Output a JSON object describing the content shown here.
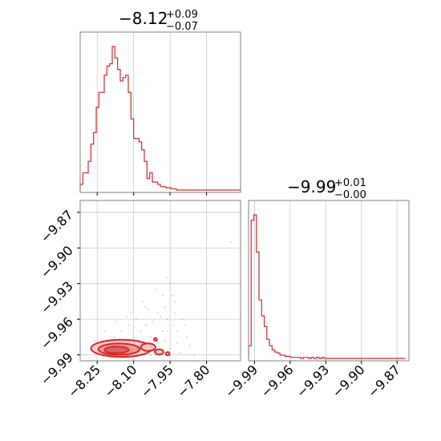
{
  "style": {
    "series_color": "#d62728",
    "fill_light": "#f4c7c7",
    "fill_mid": "#e9898a"
  },
  "chart_data": [
    {
      "type": "histogram",
      "panel": "top-left",
      "param_index": 1,
      "title": {
        "value": "−8.12",
        "upper": "+0.09",
        "lower": "−0.07"
      },
      "xlim": [
        -8.32,
        -7.66
      ],
      "bin_width": 0.011,
      "bins_start": -8.32,
      "counts": [
        5,
        15,
        15,
        25,
        40,
        50,
        72,
        85,
        85,
        100,
        108,
        110,
        125,
        115,
        105,
        95,
        98,
        100,
        85,
        62,
        45,
        45,
        42,
        35,
        25,
        10,
        15,
        7,
        7,
        5,
        3,
        3,
        2,
        2,
        1,
        1,
        0,
        0,
        0,
        0,
        0,
        0,
        0,
        0,
        0,
        0,
        0,
        0,
        0,
        0,
        0,
        0,
        0,
        0,
        0,
        0,
        0,
        0,
        0,
        0
      ],
      "x_ticks": [
        -8.25,
        -8.1,
        -7.95,
        -7.8
      ],
      "y_ticks": []
    },
    {
      "type": "histogram",
      "panel": "bottom-right",
      "param_index": 2,
      "title": {
        "value": "−9.99",
        "upper": "+0.01",
        "lower": "−0.00"
      },
      "xlim": [
        -9.995,
        -9.86
      ],
      "bin_width": 0.0022,
      "bins_start": -9.995,
      "counts": [
        12,
        130,
        135,
        100,
        55,
        40,
        30,
        18,
        12,
        8,
        6,
        5,
        3,
        3,
        2,
        2,
        1,
        1,
        1,
        1,
        0,
        1,
        1,
        0,
        1,
        0,
        1,
        0,
        1,
        0,
        0,
        0,
        0,
        0,
        0,
        0,
        0,
        0,
        0,
        0,
        0,
        0,
        0,
        0,
        0,
        0,
        0,
        0,
        0,
        0,
        0,
        0,
        0,
        0,
        0,
        0,
        0,
        0,
        0,
        0
      ],
      "x_ticks": [
        -9.99,
        -9.96,
        -9.93,
        -9.9,
        -9.87
      ],
      "x_tick_labels": [
        "−9.99",
        "−9.96",
        "−9.93",
        "−9.90",
        "−9.87"
      ]
    },
    {
      "type": "scatter-contour",
      "panel": "bottom-left",
      "xlim": [
        -8.32,
        -7.66
      ],
      "ylim": [
        -9.995,
        -9.86
      ],
      "x_ticks": [
        -8.25,
        -8.1,
        -7.95,
        -7.8
      ],
      "x_tick_labels": [
        "−8.25",
        "−8.10",
        "−7.95",
        "−7.80"
      ],
      "y_ticks": [
        -9.87,
        -9.9,
        -9.93,
        -9.96,
        -9.99
      ],
      "y_tick_labels": [
        "−9.87",
        "−9.90",
        "−9.93",
        "−9.96",
        "−9.99"
      ],
      "scatter_points": [
        [
          -8.05,
          -9.965
        ],
        [
          -8.03,
          -9.975
        ],
        [
          -8.0,
          -9.98
        ],
        [
          -7.98,
          -9.97
        ],
        [
          -7.95,
          -9.985
        ],
        [
          -7.96,
          -9.96
        ],
        [
          -8.02,
          -9.962
        ],
        [
          -7.97,
          -9.95
        ],
        [
          -7.92,
          -9.97
        ],
        [
          -8.07,
          -9.97
        ],
        [
          -8.12,
          -9.965
        ],
        [
          -8.15,
          -9.97
        ],
        [
          -8.18,
          -9.975
        ],
        [
          -8.2,
          -9.98
        ],
        [
          -8.23,
          -9.983
        ],
        [
          -8.0,
          -9.955
        ],
        [
          -7.9,
          -9.96
        ],
        [
          -7.93,
          -9.945
        ],
        [
          -7.98,
          -9.94
        ],
        [
          -8.04,
          -9.952
        ],
        [
          -7.95,
          -9.93
        ],
        [
          -7.96,
          -9.925
        ],
        [
          -7.94,
          -9.94
        ],
        [
          -7.99,
          -9.958
        ],
        [
          -8.09,
          -9.96
        ],
        [
          -8.11,
          -9.955
        ],
        [
          -7.88,
          -9.975
        ],
        [
          -7.85,
          -9.99
        ],
        [
          -7.87,
          -9.982
        ],
        [
          -7.91,
          -9.988
        ],
        [
          -7.7,
          -9.895
        ],
        [
          -8.01,
          -9.935
        ],
        [
          -8.06,
          -9.945
        ],
        [
          -8.13,
          -9.958
        ],
        [
          -8.17,
          -9.962
        ],
        [
          -8.22,
          -9.97
        ],
        [
          -8.26,
          -9.978
        ],
        [
          -8.28,
          -9.985
        ],
        [
          -8.08,
          -9.978
        ],
        [
          -8.14,
          -9.982
        ],
        [
          -7.99,
          -9.99
        ],
        [
          -8.03,
          -9.99
        ],
        [
          -7.94,
          -9.965
        ],
        [
          -7.97,
          -9.978
        ],
        [
          -8.05,
          -9.95
        ],
        [
          -7.93,
          -9.955
        ],
        [
          -7.96,
          -9.97
        ],
        [
          -8.02,
          -9.985
        ],
        [
          -7.89,
          -9.965
        ],
        [
          -7.92,
          -9.98
        ]
      ],
      "contours": [
        {
          "level": "outer",
          "center": [
            -8.15,
            -9.9845
          ],
          "rx": 0.125,
          "ry": 0.0072
        },
        {
          "level": "middle",
          "center": [
            -8.16,
            -9.9852
          ],
          "rx": 0.085,
          "ry": 0.0048
        },
        {
          "level": "inner",
          "center": [
            -8.17,
            -9.9858
          ],
          "rx": 0.05,
          "ry": 0.0028
        }
      ],
      "blobs": [
        {
          "center": [
            -8.04,
            -9.9835
          ],
          "rx": 0.03,
          "ry": 0.0032
        },
        {
          "center": [
            -7.995,
            -9.9875
          ],
          "rx": 0.018,
          "ry": 0.0022
        },
        {
          "center": [
            -7.96,
            -9.989
          ],
          "rx": 0.008,
          "ry": 0.0014
        },
        {
          "center": [
            -8.01,
            -9.977
          ],
          "rx": 0.006,
          "ry": 0.0012
        }
      ]
    }
  ]
}
